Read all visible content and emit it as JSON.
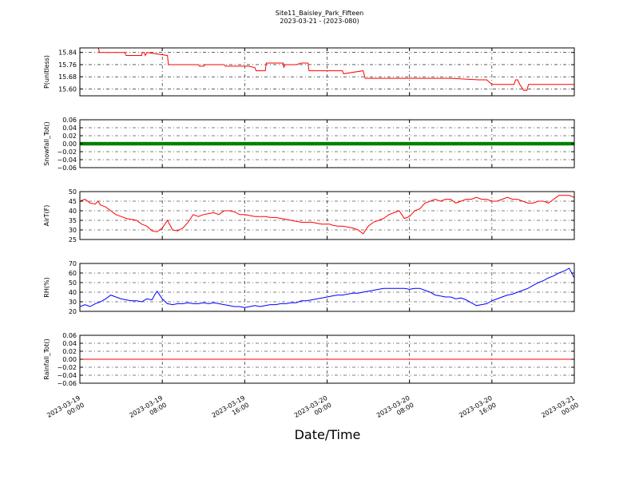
{
  "figure": {
    "title_line1": "Site11_Baisley_Park_Fifteen",
    "title_line2": "2023-03-21 - (2023-080)",
    "xlabel": "Date/Time"
  },
  "chart_data": [
    {
      "type": "line",
      "ylabel": "P(unitless)",
      "ylim": [
        15.555,
        15.87
      ],
      "yticks": [
        15.6,
        15.68,
        15.76,
        15.84
      ],
      "ytick_labels": [
        "15.60",
        "15.68",
        "15.76",
        "15.84"
      ],
      "color": "#ff0000",
      "grid": true,
      "series": [
        {
          "x": [
            0,
            3.6,
            3.8,
            8.7,
            9.0,
            12.0,
            12.1,
            12.5,
            12.7,
            13.0,
            17.0,
            17.2,
            23.0,
            23.2,
            24.1,
            24.3,
            27.0,
            27.3,
            28.0,
            28.3,
            31.0,
            31.2,
            31.4,
            31.6,
            32.6,
            32.8,
            34.0,
            34.2,
            34.3,
            34.6,
            35.0,
            36.0,
            36.2,
            39.5,
            39.6,
            39.8,
            40.0,
            42.0,
            43.0,
            43.2,
            44.3,
            44.5,
            51.0,
            51.2,
            55.0,
            55.4,
            56.0,
            56.5,
            62.0,
            62.3,
            66.5,
            66.7,
            66.9,
            69.6,
            69.8,
            70.8,
            71.0,
            71.3,
            72.0,
            77.4,
            77.6,
            78.6,
            79.0,
            80.0,
            80.3,
            84.3,
            84.6,
            85.0,
            85.4,
            86.2,
            86.8,
            87.1,
            96.0
          ],
          "y": [
            15.87,
            15.87,
            15.84,
            15.84,
            15.82,
            15.82,
            15.84,
            15.84,
            15.82,
            15.84,
            15.82,
            15.76,
            15.76,
            15.75,
            15.75,
            15.76,
            15.76,
            15.76,
            15.76,
            15.75,
            15.75,
            15.75,
            15.75,
            15.75,
            15.75,
            15.75,
            15.74,
            15.72,
            15.72,
            15.72,
            15.72,
            15.72,
            15.77,
            15.77,
            15.74,
            15.76,
            15.76,
            15.76,
            15.77,
            15.77,
            15.77,
            15.72,
            15.72,
            15.7,
            15.72,
            15.67,
            15.67,
            15.67,
            15.67,
            15.67,
            15.67,
            15.67,
            15.67,
            15.67,
            15.67,
            15.67,
            15.67,
            15.67,
            15.67,
            15.66,
            15.66,
            15.66,
            15.66,
            15.63,
            15.63,
            15.63,
            15.66,
            15.66,
            15.63,
            15.59,
            15.59,
            15.63,
            15.63
          ]
        }
      ]
    },
    {
      "type": "scatter",
      "ylabel": "Snowfall_Tot()",
      "ylim": [
        -0.06,
        0.06
      ],
      "yticks": [
        -0.06,
        -0.04,
        -0.02,
        0.0,
        0.02,
        0.04,
        0.06
      ],
      "ytick_labels": [
        "−0.06",
        "−0.04",
        "−0.02",
        "0.00",
        "0.02",
        "0.04",
        "0.06"
      ],
      "color": "#008000",
      "grid": true,
      "series": [
        {
          "x_range": [
            0,
            96
          ],
          "x_step": 0.25,
          "y_constant": 0.0
        }
      ]
    },
    {
      "type": "line",
      "ylabel": "AirT(F)",
      "ylim": [
        25,
        50
      ],
      "yticks": [
        25,
        30,
        35,
        40,
        45,
        50
      ],
      "ytick_labels": [
        "25",
        "30",
        "35",
        "40",
        "45",
        "50"
      ],
      "color": "#ff0000",
      "grid": true,
      "series": [
        {
          "x": [
            0,
            1,
            2,
            3,
            3.5,
            4,
            5,
            6,
            7,
            8,
            9,
            10,
            11,
            12,
            13,
            14,
            15,
            16,
            17,
            18,
            19,
            20,
            21,
            22,
            23,
            24,
            25,
            26,
            27,
            28,
            29,
            30,
            31,
            32,
            33,
            34,
            35,
            36,
            37,
            38,
            39,
            40,
            41,
            42,
            43,
            44,
            45,
            46,
            47,
            48,
            48.5,
            49,
            50,
            51,
            52,
            53,
            54,
            55,
            56,
            57,
            58,
            59,
            60,
            61,
            62,
            63,
            64,
            65,
            66,
            67,
            68,
            69,
            70,
            71,
            72,
            73,
            74,
            75,
            76,
            77,
            78,
            79,
            80,
            81,
            82,
            83,
            84,
            85,
            86,
            87,
            88,
            89,
            90,
            91,
            92,
            93,
            94,
            95,
            96
          ],
          "y": [
            45,
            46,
            44,
            43.5,
            45,
            43,
            42,
            40,
            38,
            37,
            36,
            35.5,
            35,
            33,
            32,
            29.5,
            29,
            31,
            35,
            30,
            29.5,
            31,
            34,
            38,
            37,
            38,
            38.5,
            39,
            38,
            40,
            40,
            39.5,
            38,
            38,
            37.5,
            37,
            37,
            37,
            36.5,
            36.5,
            36,
            35.5,
            35,
            34.5,
            34,
            34,
            34,
            33.5,
            33,
            33,
            33,
            32.5,
            32,
            32,
            31.5,
            31,
            30,
            28,
            32,
            34,
            35,
            36,
            38,
            39,
            40,
            36,
            37,
            40,
            41,
            44,
            45,
            46,
            45,
            46,
            46,
            44,
            45,
            46,
            46,
            47,
            46,
            46,
            45,
            45,
            46,
            47,
            46,
            46,
            45,
            44,
            44,
            45,
            45,
            44,
            46,
            48,
            48,
            48,
            47
          ]
        }
      ]
    },
    {
      "type": "line",
      "ylabel": "RH(%)",
      "ylim": [
        20,
        70
      ],
      "yticks": [
        20,
        30,
        40,
        50,
        60,
        70
      ],
      "ytick_labels": [
        "20",
        "30",
        "40",
        "50",
        "60",
        "70"
      ],
      "color": "#0000ff",
      "grid": true,
      "series": [
        {
          "x": [
            0,
            1,
            2,
            3,
            4,
            5,
            6,
            7,
            8,
            9,
            10,
            11,
            12,
            13,
            14,
            14.5,
            15,
            16,
            17,
            18,
            19,
            20,
            21,
            22,
            23,
            24,
            25,
            26,
            27,
            28,
            29,
            30,
            31,
            32,
            33,
            34,
            35,
            36,
            37,
            38,
            39,
            40,
            41,
            42,
            43,
            44,
            45,
            46,
            47,
            48,
            49,
            50,
            51,
            52,
            53,
            54,
            55,
            56,
            57,
            58,
            59,
            60,
            61,
            62,
            63,
            64,
            65,
            66,
            67,
            68,
            69,
            70,
            71,
            72,
            73,
            74,
            75,
            76,
            77,
            78,
            79,
            80,
            81,
            82,
            83,
            84,
            85,
            86,
            87,
            88,
            89,
            90,
            91,
            92,
            93,
            94,
            95,
            96
          ],
          "y": [
            25,
            27,
            25,
            28,
            30,
            33,
            37,
            35,
            33,
            32,
            31,
            31,
            30,
            33,
            32,
            37,
            41,
            33,
            28,
            27,
            28,
            28,
            29,
            28,
            28,
            29,
            28,
            29,
            28,
            27,
            26,
            25,
            25,
            24,
            25,
            26,
            25,
            26,
            27,
            27,
            28,
            28,
            29,
            29,
            31,
            31,
            32,
            33,
            34,
            35,
            36,
            37,
            37,
            38,
            39,
            39,
            40,
            41,
            42,
            43,
            44,
            44,
            44,
            44,
            44,
            43,
            44,
            44,
            42,
            40,
            37,
            36,
            35,
            35,
            33,
            34,
            32,
            29,
            26,
            27,
            28,
            31,
            33,
            35,
            37,
            38,
            40,
            42,
            44,
            47,
            50,
            52,
            55,
            57,
            60,
            62,
            65,
            55
          ]
        }
      ]
    },
    {
      "type": "line",
      "ylabel": "Rainfall_Tot()",
      "ylim": [
        -0.06,
        0.06
      ],
      "yticks": [
        -0.06,
        -0.04,
        -0.02,
        0.0,
        0.02,
        0.04,
        0.06
      ],
      "ytick_labels": [
        "−0.06",
        "−0.04",
        "−0.02",
        "0.00",
        "0.02",
        "0.04",
        "0.06"
      ],
      "color": "#ff0000",
      "grid": true,
      "series": [
        {
          "x": [
            0,
            96
          ],
          "y": [
            0.0,
            0.0
          ]
        }
      ]
    }
  ],
  "x_axis": {
    "ticks": [
      0,
      16,
      32,
      48,
      64,
      80,
      96
    ],
    "tick_labels": [
      [
        "2023-03-19",
        "00:00"
      ],
      [
        "2023-03-19",
        "08:00"
      ],
      [
        "2023-03-19",
        "16:00"
      ],
      [
        "2023-03-20",
        "00:00"
      ],
      [
        "2023-03-20",
        "08:00"
      ],
      [
        "2023-03-20",
        "16:00"
      ],
      [
        "2023-03-21",
        "00:00"
      ]
    ]
  }
}
